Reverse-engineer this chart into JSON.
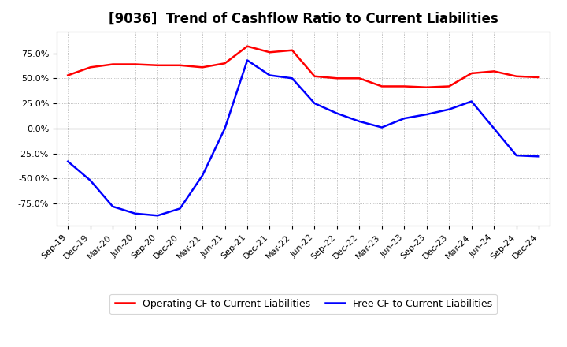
{
  "title": "[9036]  Trend of Cashflow Ratio to Current Liabilities",
  "x_labels": [
    "Sep-19",
    "Dec-19",
    "Mar-20",
    "Jun-20",
    "Sep-20",
    "Dec-20",
    "Mar-21",
    "Jun-21",
    "Sep-21",
    "Dec-21",
    "Mar-22",
    "Jun-22",
    "Sep-22",
    "Dec-22",
    "Mar-23",
    "Jun-23",
    "Sep-23",
    "Dec-23",
    "Mar-24",
    "Jun-24",
    "Sep-24",
    "Dec-24"
  ],
  "operating_cf": [
    0.53,
    0.61,
    0.64,
    0.64,
    0.63,
    0.63,
    0.61,
    0.65,
    0.82,
    0.76,
    0.78,
    0.52,
    0.5,
    0.5,
    0.42,
    0.42,
    0.41,
    0.42,
    0.55,
    0.57,
    0.52,
    0.51
  ],
  "free_cf": [
    -0.33,
    -0.52,
    -0.78,
    -0.85,
    -0.87,
    -0.8,
    -0.47,
    0.0,
    0.68,
    0.53,
    0.5,
    0.25,
    0.15,
    0.07,
    0.01,
    0.1,
    0.14,
    0.19,
    0.27,
    0.0,
    -0.27,
    -0.28
  ],
  "operating_color": "#ff0000",
  "free_color": "#0000ff",
  "background_color": "#ffffff",
  "plot_bg_color": "#ffffff",
  "ylim": [
    -0.97,
    0.97
  ],
  "yticks": [
    -0.75,
    -0.5,
    -0.25,
    0.0,
    0.25,
    0.5,
    0.75
  ],
  "ytick_labels": [
    "-75.0%",
    "-50.0%",
    "-25.0%",
    "0.0%",
    "25.0%",
    "50.0%",
    "75.0%"
  ],
  "legend_operating": "Operating CF to Current Liabilities",
  "legend_free": "Free CF to Current Liabilities",
  "title_fontsize": 12,
  "axis_fontsize": 8,
  "legend_fontsize": 9,
  "line_width": 1.8
}
